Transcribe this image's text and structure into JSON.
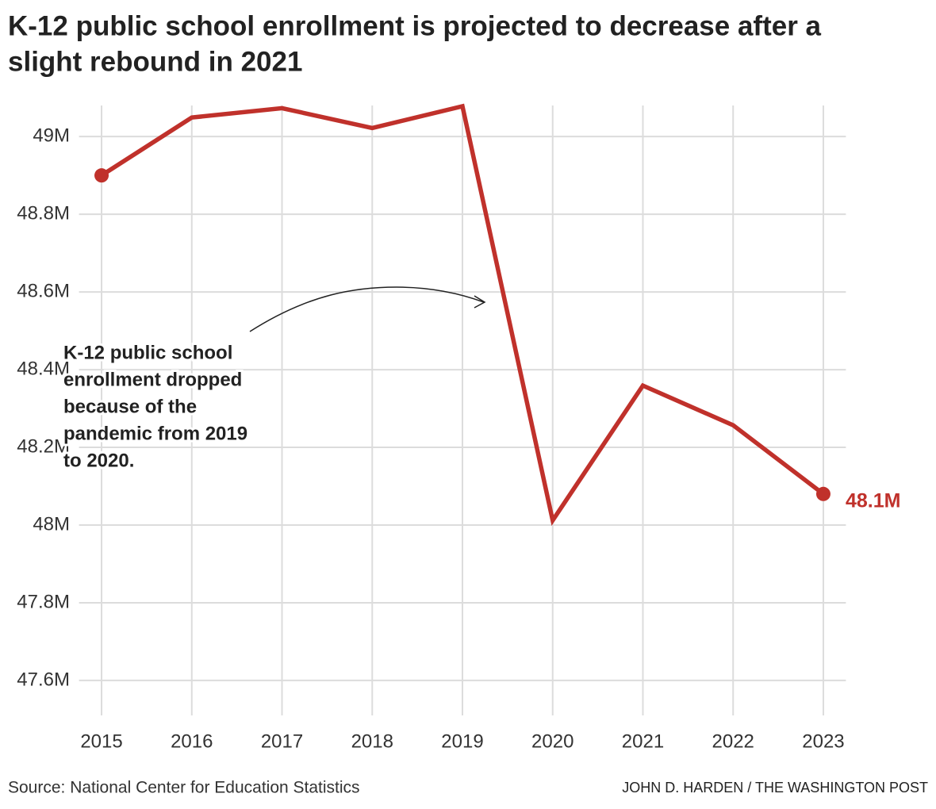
{
  "chart_data": {
    "type": "line",
    "title_lines": [
      "K-12 public school enrollment is projected to decrease after a",
      "slight rebound in 2021"
    ],
    "x": [
      2015,
      2016,
      2017,
      2018,
      2019,
      2020,
      2021,
      2022,
      2023
    ],
    "series": [
      {
        "color": "#c0312b",
        "values": [
          48.9,
          49.049,
          49.073,
          49.022,
          49.078,
          48.012,
          48.359,
          48.257,
          48.08
        ],
        "value_labels": [
          null,
          null,
          null,
          null,
          null,
          null,
          null,
          null,
          "48.1M"
        ]
      }
    ],
    "xlim": [
      2014.75,
      2023.25
    ],
    "xticks": [
      2015,
      2016,
      2017,
      2018,
      2019,
      2020,
      2021,
      2022,
      2023
    ],
    "ylim": [
      47.51,
      49.08
    ],
    "yticks": [
      {
        "value": 47.6,
        "label": "47.6M"
      },
      {
        "value": 47.8,
        "label": "47.8M"
      },
      {
        "value": 48,
        "label": "48M"
      },
      {
        "value": 48.2,
        "label": "48.2M"
      },
      {
        "value": 48.4,
        "label": "48.4M"
      },
      {
        "value": 48.6,
        "label": "48.6M"
      },
      {
        "value": 48.8,
        "label": "48.8M"
      },
      {
        "value": 49,
        "label": "49M"
      }
    ],
    "grid": true,
    "annotation_lines": [
      "K-12 public school",
      "enrollment dropped",
      "because of the",
      "pandemic from 2019",
      "to 2020."
    ],
    "source": "Source: National Center for Education Statistics",
    "credit": "JOHN D. HARDEN / THE WASHINGTON POST"
  }
}
